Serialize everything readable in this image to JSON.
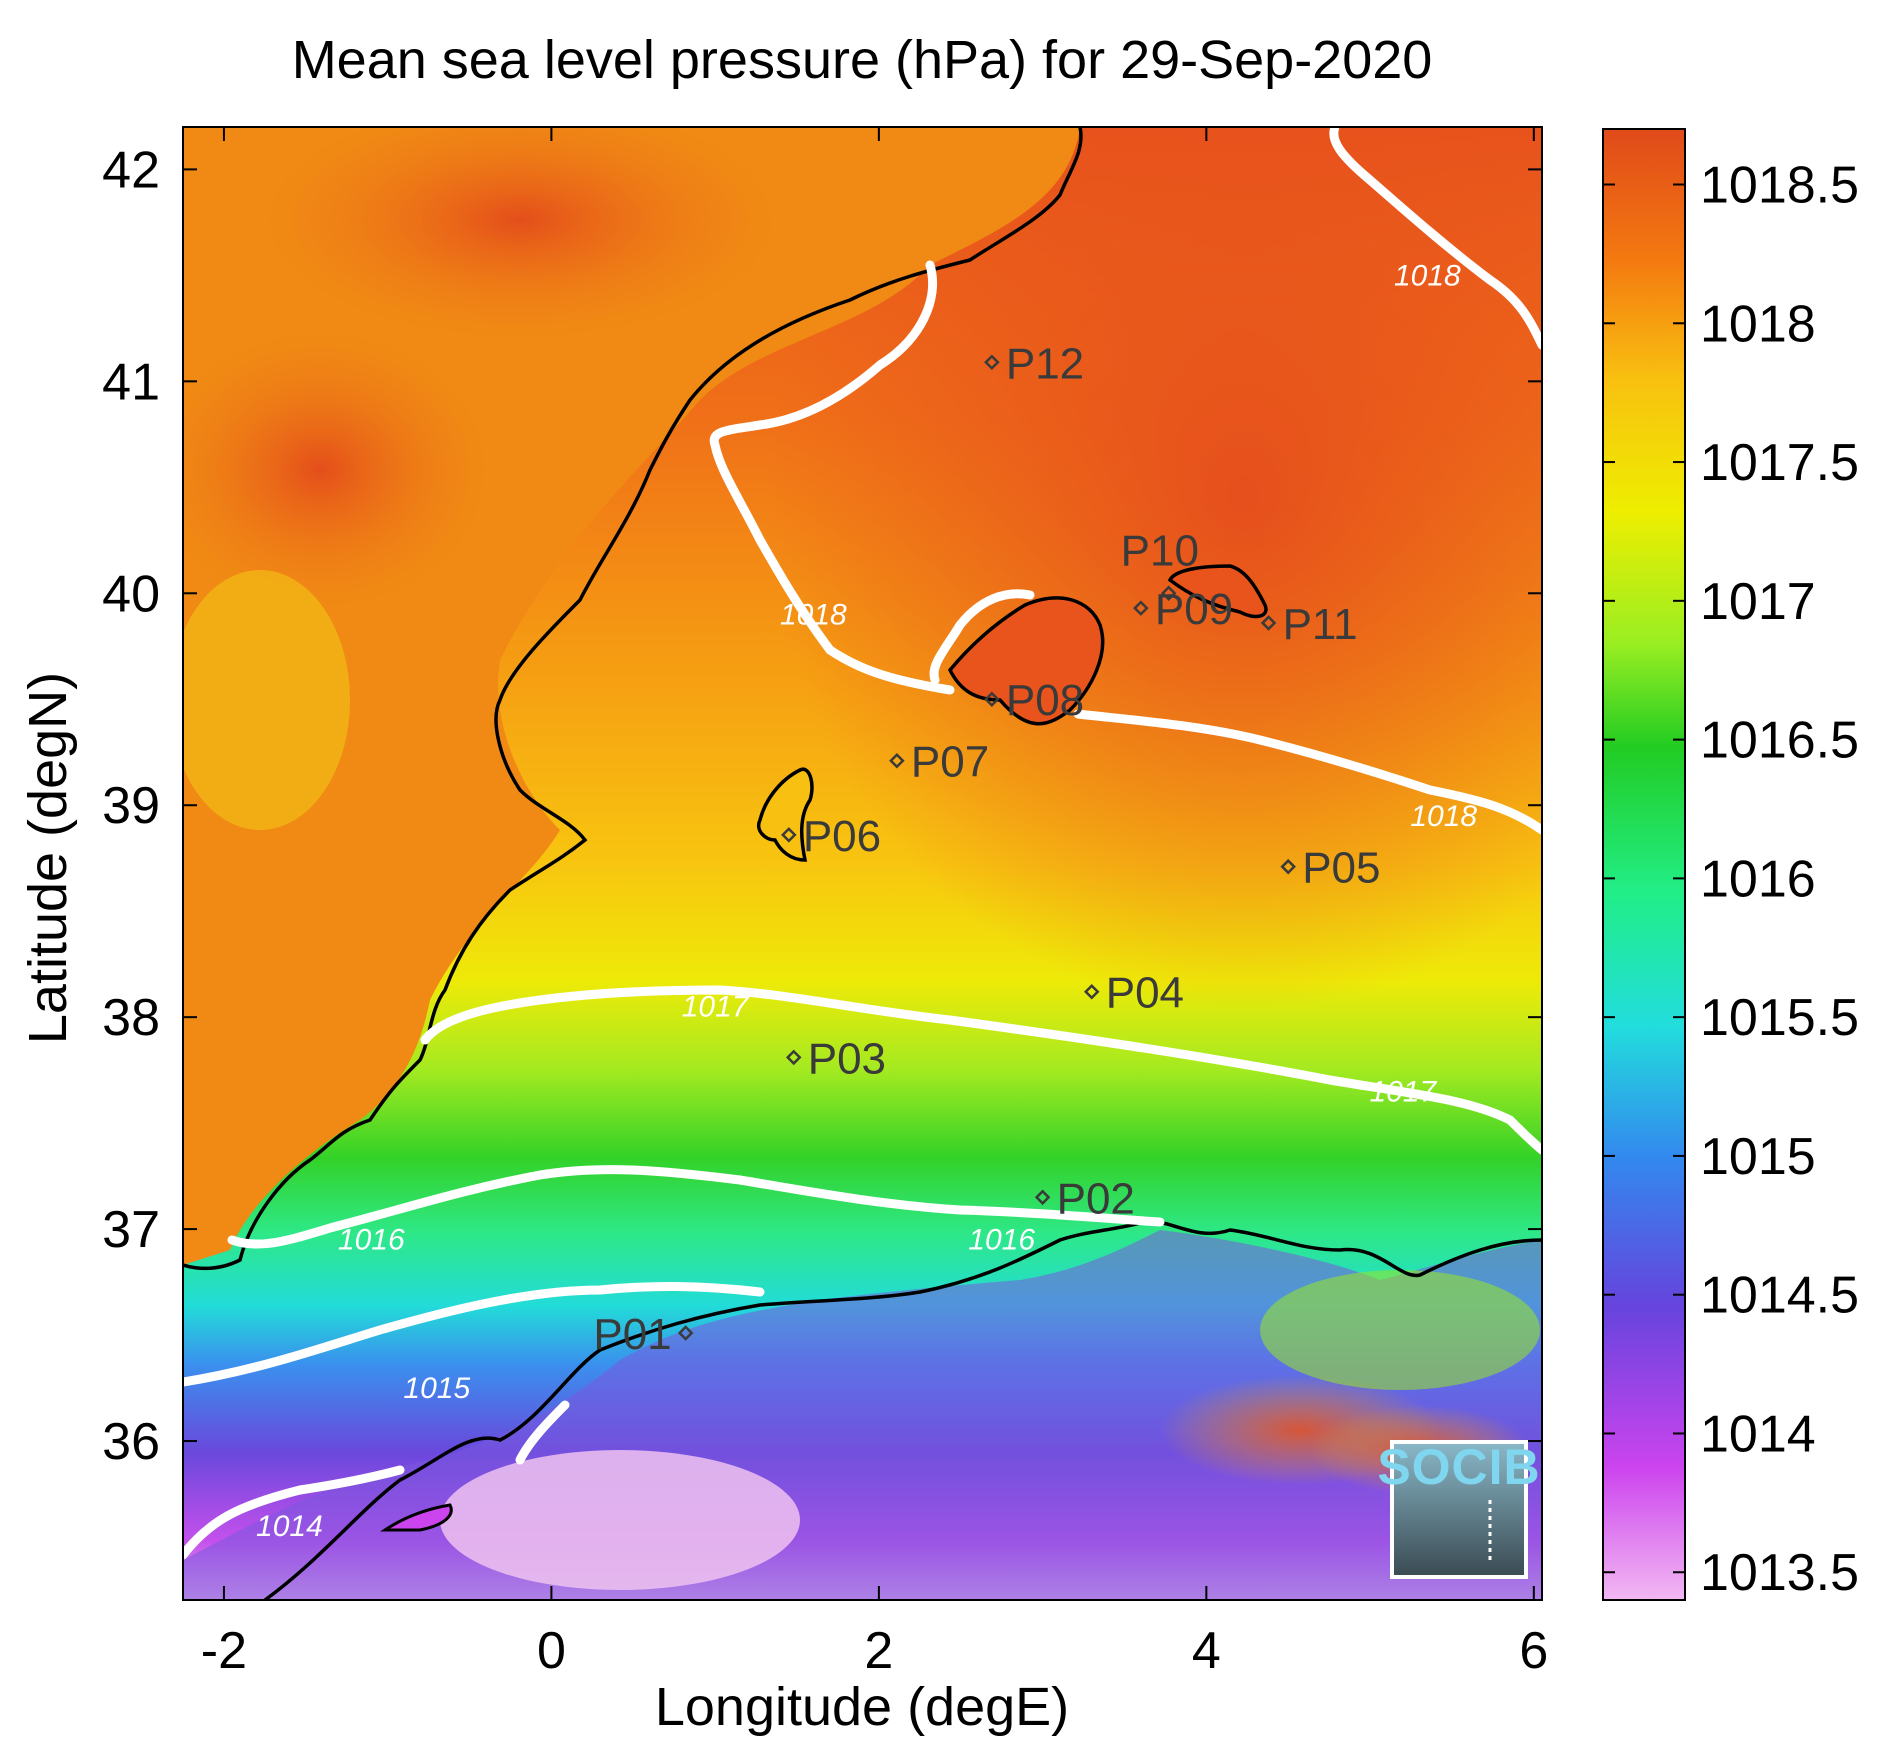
{
  "title": "Mean sea level pressure (hPa) for 29-Sep-2020",
  "map": {
    "xlabel": "Longitude (degE)",
    "ylabel": "Latitude (degN)",
    "x_ticks": [
      "-2",
      "0",
      "2",
      "4",
      "6"
    ],
    "y_ticks": [
      "42",
      "41",
      "40",
      "39",
      "38",
      "37",
      "36"
    ],
    "lon_range": [
      -2.25,
      6.05
    ],
    "lat_range": [
      35.25,
      42.2
    ]
  },
  "colorbar": {
    "ticks": [
      "1018.5",
      "1018",
      "1017.5",
      "1017",
      "1016.5",
      "1016",
      "1015.5",
      "1015",
      "1014.5",
      "1014",
      "1013.5"
    ],
    "range": [
      1013.4,
      1018.7
    ],
    "colors": [
      "#f2b8f2",
      "#cc44ee",
      "#6644dd",
      "#3388ee",
      "#22dddd",
      "#22ee88",
      "#22cc22",
      "#99ee22",
      "#eeee00",
      "#f8c010",
      "#f47a10",
      "#e04a1a"
    ]
  },
  "contours": [
    {
      "label": "1014",
      "lon": -1.6,
      "lat": 35.6
    },
    {
      "label": "1015",
      "lon": -0.7,
      "lat": 36.25
    },
    {
      "label": "1016",
      "lon": -1.1,
      "lat": 36.95
    },
    {
      "label": "1016",
      "lon": 2.75,
      "lat": 36.95
    },
    {
      "label": "1017",
      "lon": 1.0,
      "lat": 38.05
    },
    {
      "label": "1017",
      "lon": 5.2,
      "lat": 37.65
    },
    {
      "label": "1018",
      "lon": 1.6,
      "lat": 39.9
    },
    {
      "label": "1018",
      "lon": 5.35,
      "lat": 41.5
    },
    {
      "label": "1018",
      "lon": 5.45,
      "lat": 38.95
    }
  ],
  "stations": [
    {
      "name": "P01",
      "lon": 0.82,
      "lat": 36.51
    },
    {
      "name": "P02",
      "lon": 3.0,
      "lat": 37.15
    },
    {
      "name": "P03",
      "lon": 1.48,
      "lat": 37.81
    },
    {
      "name": "P04",
      "lon": 3.3,
      "lat": 38.12
    },
    {
      "name": "P05",
      "lon": 4.5,
      "lat": 38.71
    },
    {
      "name": "P06",
      "lon": 1.45,
      "lat": 38.86
    },
    {
      "name": "P07",
      "lon": 2.11,
      "lat": 39.21
    },
    {
      "name": "P08",
      "lon": 2.69,
      "lat": 39.5
    },
    {
      "name": "P09",
      "lon": 3.6,
      "lat": 39.93
    },
    {
      "name": "P10",
      "lon": 3.77,
      "lat": 40.0
    },
    {
      "name": "P11",
      "lon": 4.38,
      "lat": 39.86
    },
    {
      "name": "P12",
      "lon": 2.69,
      "lat": 41.09
    }
  ],
  "logo": "SOCIB"
}
